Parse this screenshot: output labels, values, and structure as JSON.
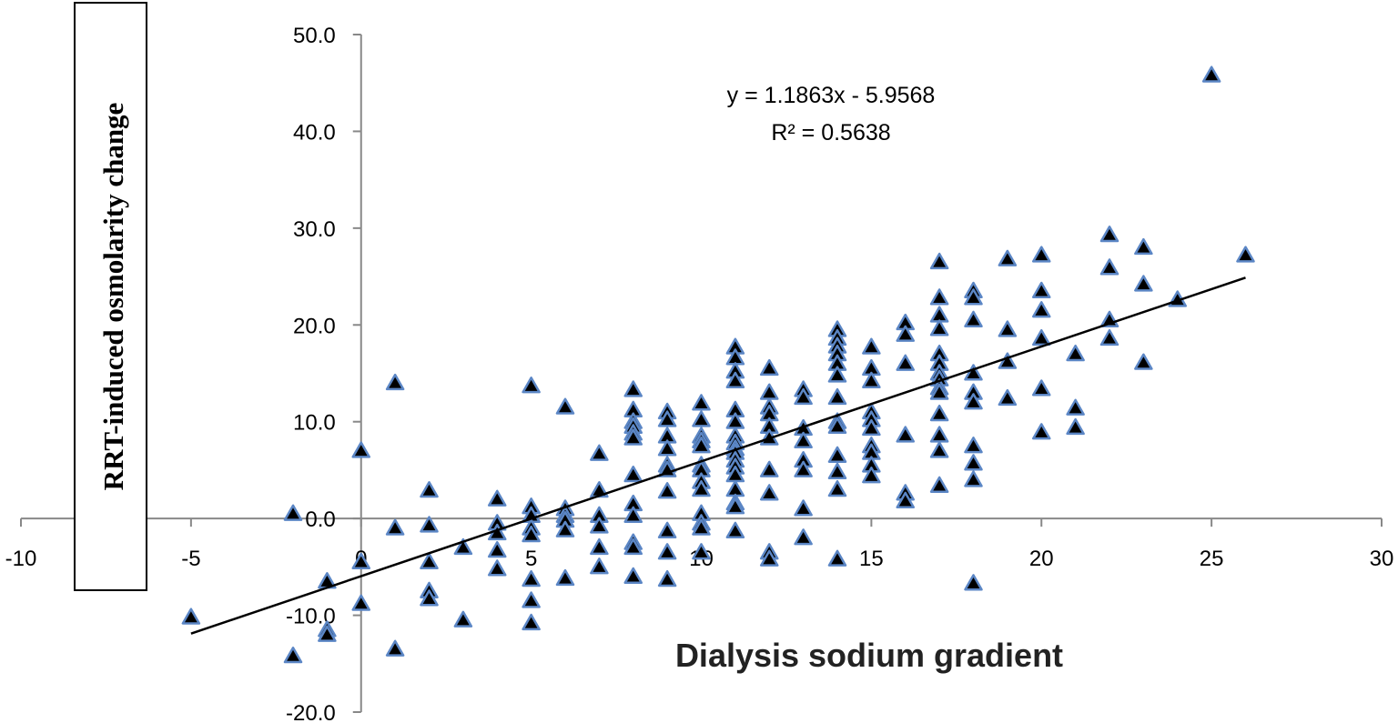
{
  "chart_data": {
    "type": "scatter",
    "xlabel": "Dialysis sodium gradient",
    "ylabel": "RRT-induced osmolarity change",
    "xlim": [
      -10,
      30
    ],
    "ylim": [
      -20,
      50
    ],
    "x_ticks": [
      "-10",
      "-5",
      "0",
      "5",
      "10",
      "15",
      "20",
      "25",
      "30"
    ],
    "y_ticks": [
      "-20.0",
      "-10.0",
      "0.0",
      "10.0",
      "20.0",
      "30.0",
      "40.0",
      "50.0"
    ],
    "marker": "triangle",
    "marker_fill": "#000000",
    "marker_edge": "#5b86c5",
    "trendline": {
      "slope": 1.1863,
      "intercept": -5.9568,
      "x_range": [
        -5,
        26
      ],
      "equation": "y = 1.1863x - 5.9568",
      "r_squared": "R² = 0.5638"
    },
    "points": [
      [
        -5,
        -10.2
      ],
      [
        -2,
        0.5
      ],
      [
        -2,
        -14.2
      ],
      [
        -1,
        -6.5
      ],
      [
        -1,
        -11.5
      ],
      [
        -1,
        -12
      ],
      [
        0,
        7
      ],
      [
        0,
        -4.5
      ],
      [
        0,
        -8.8
      ],
      [
        1,
        14
      ],
      [
        1,
        -1
      ],
      [
        1,
        -13.5
      ],
      [
        2,
        2.9
      ],
      [
        2,
        -0.7
      ],
      [
        2,
        -4.5
      ],
      [
        2,
        -7.5
      ],
      [
        2,
        -8.3
      ],
      [
        3,
        -3
      ],
      [
        3,
        -10.5
      ],
      [
        4,
        2
      ],
      [
        4,
        -0.5
      ],
      [
        4,
        -1.5
      ],
      [
        4,
        -3.3
      ],
      [
        4,
        -5.2
      ],
      [
        5,
        13.7
      ],
      [
        5,
        1.2
      ],
      [
        5,
        0.3
      ],
      [
        5,
        -1
      ],
      [
        5,
        -1.7
      ],
      [
        5,
        -6.3
      ],
      [
        5,
        -8.5
      ],
      [
        5,
        -10.8
      ],
      [
        6,
        11.5
      ],
      [
        6,
        1
      ],
      [
        6,
        0.3
      ],
      [
        6,
        -0.2
      ],
      [
        6,
        -1.2
      ],
      [
        6,
        -6.2
      ],
      [
        7,
        6.7
      ],
      [
        7,
        2.9
      ],
      [
        7,
        0.3
      ],
      [
        7,
        -0.8
      ],
      [
        7,
        -3
      ],
      [
        7,
        -5
      ],
      [
        8,
        13.3
      ],
      [
        8,
        11.2
      ],
      [
        8,
        10
      ],
      [
        8,
        9.5
      ],
      [
        8,
        8.8
      ],
      [
        8,
        8.3
      ],
      [
        8,
        4.5
      ],
      [
        8,
        1.5
      ],
      [
        8,
        0.3
      ],
      [
        8,
        -2.5
      ],
      [
        8,
        -3
      ],
      [
        8,
        -6
      ],
      [
        9,
        11
      ],
      [
        9,
        10.2
      ],
      [
        9,
        8.5
      ],
      [
        9,
        7.2
      ],
      [
        9,
        5.5
      ],
      [
        9,
        5
      ],
      [
        9,
        2.8
      ],
      [
        9,
        -1.3
      ],
      [
        9,
        -3.5
      ],
      [
        9,
        -6.3
      ],
      [
        10,
        11.9
      ],
      [
        10,
        10.2
      ],
      [
        10,
        8.5
      ],
      [
        10,
        8
      ],
      [
        10,
        7.5
      ],
      [
        10,
        5.5
      ],
      [
        10,
        5
      ],
      [
        10,
        3.8
      ],
      [
        10,
        3
      ],
      [
        10,
        0.5
      ],
      [
        10,
        -0.5
      ],
      [
        10,
        -1
      ],
      [
        10,
        -3.5
      ],
      [
        11,
        17.7
      ],
      [
        11,
        16.6
      ],
      [
        11,
        15.2
      ],
      [
        11,
        14.2
      ],
      [
        11,
        11.2
      ],
      [
        11,
        10
      ],
      [
        11,
        8.5
      ],
      [
        11,
        7.8
      ],
      [
        11,
        7.2
      ],
      [
        11,
        6.8
      ],
      [
        11,
        6
      ],
      [
        11,
        5.3
      ],
      [
        11,
        4.5
      ],
      [
        11,
        3
      ],
      [
        11,
        1.6
      ],
      [
        11,
        1.2
      ],
      [
        11,
        -1.3
      ],
      [
        12,
        15.5
      ],
      [
        12,
        13
      ],
      [
        12,
        11.5
      ],
      [
        12,
        10.8
      ],
      [
        12,
        9.5
      ],
      [
        12,
        8.3
      ],
      [
        12,
        5
      ],
      [
        12,
        2.6
      ],
      [
        12,
        -3.5
      ],
      [
        12,
        -4.2
      ],
      [
        13,
        13.3
      ],
      [
        13,
        12.5
      ],
      [
        13,
        9.3
      ],
      [
        13,
        8
      ],
      [
        13,
        6
      ],
      [
        13,
        5
      ],
      [
        13,
        1
      ],
      [
        13,
        -2
      ],
      [
        14,
        19.5
      ],
      [
        14,
        18.6
      ],
      [
        14,
        17.8
      ],
      [
        14,
        17
      ],
      [
        14,
        16
      ],
      [
        14,
        14.8
      ],
      [
        14,
        12.5
      ],
      [
        14,
        10
      ],
      [
        14,
        9.5
      ],
      [
        14,
        6.5
      ],
      [
        14,
        4.8
      ],
      [
        14,
        3
      ],
      [
        14,
        -4.2
      ],
      [
        15,
        17.7
      ],
      [
        15,
        15.5
      ],
      [
        15,
        14.2
      ],
      [
        15,
        11
      ],
      [
        15,
        10.2
      ],
      [
        15,
        9.3
      ],
      [
        15,
        7.5
      ],
      [
        15,
        6.8
      ],
      [
        15,
        5.5
      ],
      [
        15,
        4.4
      ],
      [
        16,
        20.2
      ],
      [
        16,
        19
      ],
      [
        16,
        16
      ],
      [
        16,
        8.6
      ],
      [
        16,
        2.6
      ],
      [
        16,
        1.8
      ],
      [
        17,
        26.5
      ],
      [
        17,
        22.8
      ],
      [
        17,
        21
      ],
      [
        17,
        19.6
      ],
      [
        17,
        17
      ],
      [
        17,
        16
      ],
      [
        17,
        15
      ],
      [
        17,
        14.4
      ],
      [
        17,
        13.5
      ],
      [
        17,
        13
      ],
      [
        17,
        10.8
      ],
      [
        17,
        8.6
      ],
      [
        17,
        7
      ],
      [
        17,
        3.4
      ],
      [
        18,
        23.5
      ],
      [
        18,
        22.8
      ],
      [
        18,
        20.5
      ],
      [
        18,
        15
      ],
      [
        18,
        13
      ],
      [
        18,
        12
      ],
      [
        18,
        7.5
      ],
      [
        18,
        5.7
      ],
      [
        18,
        4
      ],
      [
        18,
        -6.7
      ],
      [
        19,
        26.8
      ],
      [
        19,
        19.5
      ],
      [
        19,
        16.2
      ],
      [
        19,
        12.4
      ],
      [
        20,
        27.2
      ],
      [
        20,
        23.5
      ],
      [
        20,
        21.5
      ],
      [
        20,
        18.6
      ],
      [
        20,
        13.4
      ],
      [
        20,
        8.9
      ],
      [
        21,
        17
      ],
      [
        21,
        11.4
      ],
      [
        21,
        9.4
      ],
      [
        22,
        29.3
      ],
      [
        22,
        25.9
      ],
      [
        22,
        20.5
      ],
      [
        22,
        18.6
      ],
      [
        23,
        28
      ],
      [
        23,
        24.2
      ],
      [
        23,
        16.1
      ],
      [
        24,
        22.6
      ],
      [
        25,
        45.8
      ],
      [
        26,
        27.2
      ]
    ]
  }
}
